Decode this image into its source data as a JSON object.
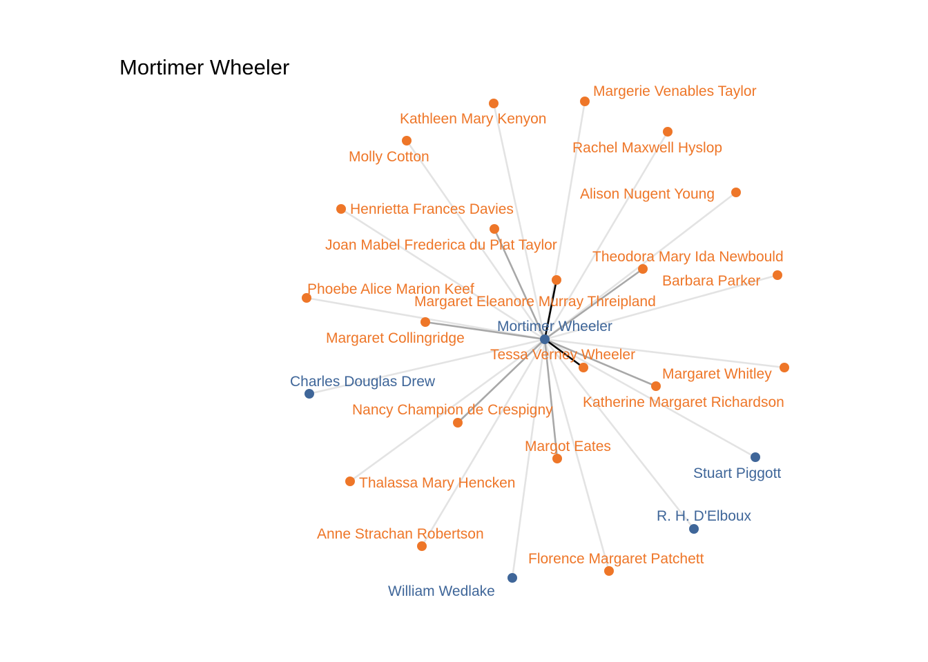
{
  "title": "Mortimer Wheeler",
  "colors": {
    "female": "#EE7628",
    "male": "#3F6699",
    "edge_light": "#E3E3E3",
    "edge_medium": "#A8A8A8",
    "edge_dark": "#000000",
    "background": "#FFFFFF"
  },
  "center": {
    "name": "Mortimer Wheeler",
    "group": "male"
  },
  "nodes": [
    {
      "id": "mortimer",
      "name": "Mortimer Wheeler",
      "group": "male"
    },
    {
      "id": "margerie",
      "name": "Margerie Venables Taylor",
      "group": "female"
    },
    {
      "id": "kathleen",
      "name": "Kathleen Mary Kenyon",
      "group": "female"
    },
    {
      "id": "rachel",
      "name": "Rachel Maxwell Hyslop",
      "group": "female"
    },
    {
      "id": "molly",
      "name": "Molly Cotton",
      "group": "female"
    },
    {
      "id": "alison",
      "name": "Alison Nugent Young",
      "group": "female"
    },
    {
      "id": "henrietta",
      "name": "Henrietta Frances Davies",
      "group": "female"
    },
    {
      "id": "joan",
      "name": "Joan Mabel Frederica du Plat Taylor",
      "group": "female"
    },
    {
      "id": "theodora",
      "name": "Theodora Mary Ida Newbould",
      "group": "female"
    },
    {
      "id": "barbara",
      "name": "Barbara Parker",
      "group": "female"
    },
    {
      "id": "phoebe",
      "name": "Phoebe Alice Marion Keef",
      "group": "female"
    },
    {
      "id": "margaret_emt",
      "name": "Margaret Eleanore Murray Threipland",
      "group": "female"
    },
    {
      "id": "margaret_c",
      "name": "Margaret Collingridge",
      "group": "female"
    },
    {
      "id": "tessa",
      "name": "Tessa Verney Wheeler",
      "group": "female"
    },
    {
      "id": "margaret_w",
      "name": "Margaret Whitley",
      "group": "female"
    },
    {
      "id": "charles",
      "name": "Charles Douglas Drew",
      "group": "male"
    },
    {
      "id": "katherine",
      "name": "Katherine Margaret Richardson",
      "group": "female"
    },
    {
      "id": "nancy",
      "name": "Nancy Champion de Crespigny",
      "group": "female"
    },
    {
      "id": "margot",
      "name": "Margot Eates",
      "group": "female"
    },
    {
      "id": "stuart",
      "name": "Stuart Piggott",
      "group": "male"
    },
    {
      "id": "thalassa",
      "name": "Thalassa Mary Hencken",
      "group": "female"
    },
    {
      "id": "delboux",
      "name": "R. H. D'Elboux",
      "group": "male"
    },
    {
      "id": "anne",
      "name": "Anne Strachan Robertson",
      "group": "female"
    },
    {
      "id": "florence",
      "name": "Florence Margaret Patchett",
      "group": "female"
    },
    {
      "id": "william",
      "name": "William Wedlake",
      "group": "male"
    }
  ],
  "edges": [
    {
      "target": "margerie",
      "strength": "light"
    },
    {
      "target": "kathleen",
      "strength": "light"
    },
    {
      "target": "rachel",
      "strength": "light"
    },
    {
      "target": "molly",
      "strength": "light"
    },
    {
      "target": "alison",
      "strength": "light"
    },
    {
      "target": "henrietta",
      "strength": "light"
    },
    {
      "target": "joan",
      "strength": "medium"
    },
    {
      "target": "theodora",
      "strength": "medium"
    },
    {
      "target": "barbara",
      "strength": "light"
    },
    {
      "target": "phoebe",
      "strength": "light"
    },
    {
      "target": "margaret_emt",
      "strength": "dark"
    },
    {
      "target": "margaret_c",
      "strength": "medium"
    },
    {
      "target": "tessa",
      "strength": "dark"
    },
    {
      "target": "margaret_w",
      "strength": "light"
    },
    {
      "target": "charles",
      "strength": "light"
    },
    {
      "target": "katherine",
      "strength": "medium"
    },
    {
      "target": "nancy",
      "strength": "medium"
    },
    {
      "target": "margot",
      "strength": "medium"
    },
    {
      "target": "stuart",
      "strength": "light"
    },
    {
      "target": "thalassa",
      "strength": "light"
    },
    {
      "target": "delboux",
      "strength": "light"
    },
    {
      "target": "anne",
      "strength": "light"
    },
    {
      "target": "florence",
      "strength": "light"
    },
    {
      "target": "william",
      "strength": "light"
    }
  ]
}
